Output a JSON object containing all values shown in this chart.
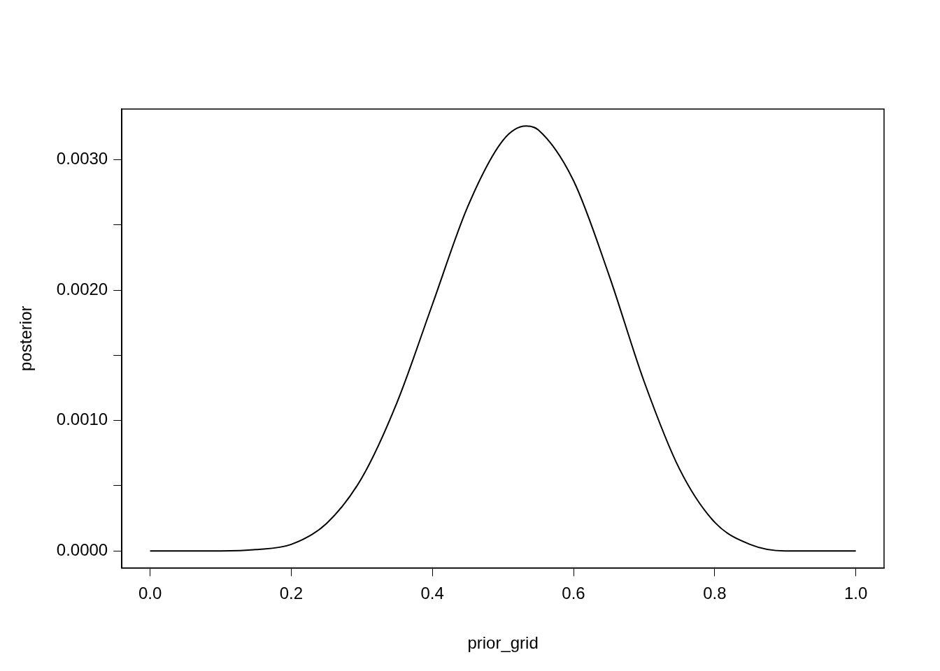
{
  "chart_data": {
    "type": "line",
    "xlabel": "prior_grid",
    "ylabel": "posterior",
    "x": [
      0,
      0.05,
      0.1,
      0.15,
      0.2,
      0.25,
      0.3,
      0.35,
      0.4,
      0.45,
      0.5,
      0.533,
      0.55,
      0.6,
      0.65,
      0.7,
      0.75,
      0.8,
      0.85,
      0.9,
      0.95,
      1
    ],
    "series": [
      {
        "color": "#000000",
        "values": [
          0,
          0,
          0,
          1e-05,
          5e-05,
          0.00021,
          0.00056,
          0.00114,
          0.00189,
          0.00264,
          0.00315,
          0.00326,
          0.00323,
          0.00284,
          0.00212,
          0.0013,
          0.00063,
          0.00022,
          5e-05,
          0,
          0,
          0
        ]
      }
    ],
    "xlim": [
      -0.04,
      1.04
    ],
    "ylim": [
      -0.00013,
      0.00339
    ],
    "xticks": [
      {
        "value": 0,
        "label": "0.0"
      },
      {
        "value": 0.2,
        "label": "0.2"
      },
      {
        "value": 0.4,
        "label": "0.4"
      },
      {
        "value": 0.6,
        "label": "0.6"
      },
      {
        "value": 0.8,
        "label": "0.8"
      },
      {
        "value": 1,
        "label": "1.0"
      }
    ],
    "yticks": [
      {
        "value": 0,
        "label": "0.0000"
      },
      {
        "value": 0.0005,
        "label": null
      },
      {
        "value": 0.001,
        "label": "0.0010"
      },
      {
        "value": 0.0015,
        "label": null
      },
      {
        "value": 0.002,
        "label": "0.0020"
      },
      {
        "value": 0.0025,
        "label": null
      },
      {
        "value": 0.003,
        "label": "0.0030"
      }
    ],
    "grid": false,
    "legend": false,
    "marker": "none",
    "line_style": "solid"
  }
}
